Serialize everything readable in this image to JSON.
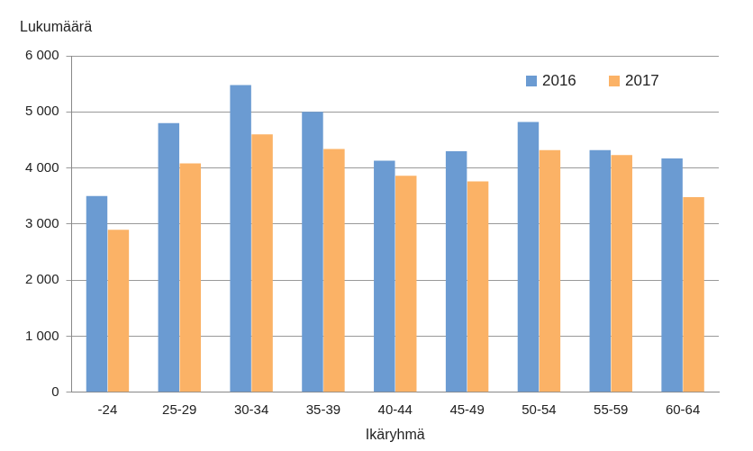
{
  "chart_data": {
    "type": "bar",
    "y_label": "Lukumäärä",
    "x_label": "Ikäryhmä",
    "categories": [
      "-24",
      "25-29",
      "30-34",
      "35-39",
      "40-44",
      "45-49",
      "50-54",
      "55-59",
      "60-64"
    ],
    "series": [
      {
        "name": "2016",
        "color": "#6b9bd2",
        "values": [
          3500,
          4800,
          5480,
          5000,
          4130,
          4300,
          4820,
          4320,
          4170
        ]
      },
      {
        "name": "2017",
        "color": "#fbb266",
        "values": [
          2900,
          4080,
          4600,
          4340,
          3860,
          3760,
          4320,
          4230,
          3480
        ]
      }
    ],
    "ylim": [
      0,
      6000
    ],
    "yticks": [
      0,
      {
        "value": 1000,
        "label": "1 000"
      },
      {
        "value": 2000,
        "label": "2 000"
      },
      {
        "value": 3000,
        "label": "3 000"
      },
      {
        "value": 4000,
        "label": "4 000"
      },
      {
        "value": 5000,
        "label": "5 000"
      },
      {
        "value": 6000,
        "label": "6 000"
      }
    ],
    "grid": true,
    "legend": "upper right"
  }
}
